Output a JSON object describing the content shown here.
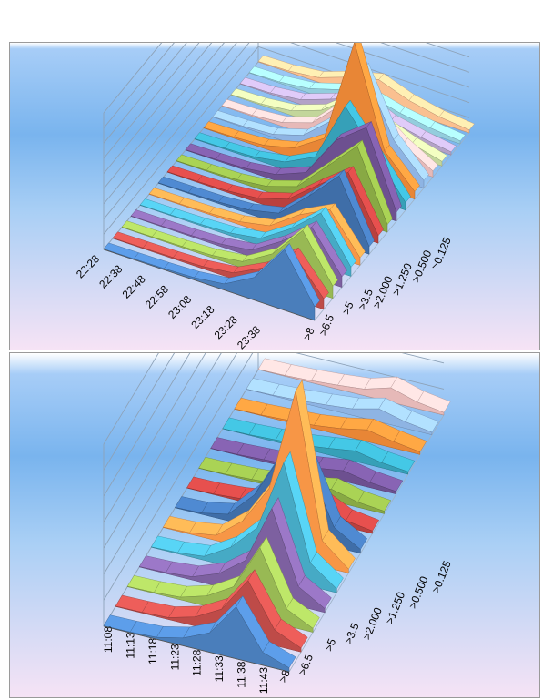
{
  "charts": [
    {
      "type": "area",
      "title": "",
      "x_categories": [
        ">8",
        ">6.5",
        ">5",
        ">3.5",
        ">2.000",
        ">1.250",
        ">0.500",
        ">0.125"
      ],
      "y_tick_labels": [
        "22:28",
        "22:38",
        "22:48",
        "22:58",
        "23:08",
        "23:18",
        "23:28",
        "23:38"
      ],
      "z_ticks": [
        0,
        1000,
        2000,
        3000,
        4000,
        5000,
        6000,
        7000,
        8000,
        9000
      ],
      "z_range": [
        0,
        9000
      ],
      "grid": true,
      "series_colors": [
        "#4a7ebb",
        "#be4b48",
        "#98b954",
        "#7d60a0",
        "#46aac5",
        "#f79646",
        "#3f6ea8",
        "#b9403e",
        "#88a944",
        "#6d5090",
        "#36a0b8",
        "#e88636",
        "#8eb4e3",
        "#e6b9b8",
        "#c3d69b",
        "#b3a2c7",
        "#93cddd",
        "#fac090"
      ],
      "chart_data": {
        "type": "area",
        "x": [
          ">8",
          ">6.5",
          ">5",
          ">3.5",
          ">2.000",
          ">1.250",
          ">0.500",
          ">0.125"
        ],
        "series": [
          {
            "values": [
              30,
              50,
              80,
              150,
              400,
              1500,
              4000,
              900
            ]
          },
          {
            "values": [
              30,
              50,
              80,
              150,
              400,
              1400,
              3000,
              700
            ]
          },
          {
            "values": [
              30,
              50,
              80,
              160,
              420,
              1600,
              3800,
              800
            ]
          },
          {
            "values": [
              30,
              50,
              80,
              170,
              450,
              1700,
              3300,
              700
            ]
          },
          {
            "values": [
              30,
              50,
              90,
              180,
              500,
              1800,
              3500,
              600
            ]
          },
          {
            "values": [
              30,
              50,
              90,
              200,
              600,
              2000,
              3000,
              500
            ]
          },
          {
            "values": [
              30,
              60,
              100,
              250,
              700,
              2500,
              4500,
              500
            ]
          },
          {
            "values": [
              30,
              60,
              110,
              300,
              900,
              2500,
              4000,
              500
            ]
          },
          {
            "values": [
              30,
              60,
              120,
              350,
              1000,
              3000,
              5000,
              500
            ]
          },
          {
            "values": [
              30,
              60,
              130,
              400,
              1200,
              4000,
              5500,
              600
            ]
          },
          {
            "values": [
              30,
              70,
              150,
              500,
              1500,
              5500,
              3000,
              500
            ]
          },
          {
            "values": [
              30,
              80,
              200,
              700,
              2000,
              9000,
              2500,
              500
            ]
          },
          {
            "values": [
              30,
              70,
              200,
              800,
              2500,
              6500,
              2500,
              500
            ]
          },
          {
            "values": [
              30,
              70,
              250,
              900,
              2800,
              3000,
              1500,
              400
            ]
          },
          {
            "values": [
              30,
              80,
              300,
              1000,
              2500,
              1500,
              800,
              300
            ]
          },
          {
            "values": [
              30,
              80,
              300,
              1000,
              1800,
              900,
              500,
              200
            ]
          },
          {
            "values": [
              30,
              80,
              300,
              900,
              1200,
              700,
              400,
              200
            ]
          },
          {
            "values": [
              30,
              80,
              300,
              1000,
              1500,
              800,
              400,
              200
            ]
          }
        ]
      }
    },
    {
      "type": "area",
      "title": "",
      "x_categories": [
        ">8",
        ">6.5",
        ">5",
        ">3.5",
        ">2.000",
        ">1.250",
        ">0.500",
        ">0.125"
      ],
      "y_tick_labels": [
        "11:08",
        "11:13",
        "11:18",
        "11:23",
        "11:28",
        "11:33",
        "11:38",
        "11:43"
      ],
      "z_ticks": [
        0,
        2000,
        4000,
        6000,
        8000,
        10000,
        12000,
        14000
      ],
      "z_range": [
        0,
        14000
      ],
      "grid": true,
      "series_colors": [
        "#4a7ebb",
        "#be4b48",
        "#98b954",
        "#7d60a0",
        "#46aac5",
        "#f79646",
        "#3f6ea8",
        "#b9403e",
        "#88a944",
        "#6d5090",
        "#36a0b8",
        "#e88636",
        "#8eb4e3",
        "#e6b9b8",
        "#c3d69b",
        "#b3a2c7",
        "#93cddd",
        "#fac090"
      ],
      "chart_data": {
        "type": "area",
        "x": [
          ">8",
          ">6.5",
          ">5",
          ">3.5",
          ">2.000",
          ">1.250",
          ">0.500",
          ">0.125"
        ],
        "series": [
          {
            "values": [
              30,
              60,
              150,
              600,
              1500,
              4000,
              1000,
              300
            ]
          },
          {
            "values": [
              30,
              60,
              150,
              700,
              1800,
              4500,
              1200,
              300
            ]
          },
          {
            "values": [
              30,
              70,
              200,
              800,
              2000,
              5500,
              1300,
              300
            ]
          },
          {
            "values": [
              30,
              80,
              250,
              1000,
              2500,
              7000,
              1500,
              300
            ]
          },
          {
            "values": [
              30,
              90,
              300,
              1500,
              3500,
              9000,
              1800,
              300
            ]
          },
          {
            "values": [
              30,
              100,
              400,
              2000,
              5000,
              13000,
              2000,
              300
            ]
          },
          {
            "values": [
              30,
              100,
              500,
              2500,
              6000,
              6000,
              1500,
              300
            ]
          },
          {
            "values": [
              20,
              50,
              200,
              500,
              800,
              1500,
              500,
              200
            ]
          },
          {
            "values": [
              20,
              50,
              150,
              300,
              500,
              900,
              400,
              200
            ]
          },
          {
            "values": [
              20,
              50,
              150,
              250,
              500,
              800,
              400,
              200
            ]
          },
          {
            "values": [
              20,
              50,
              150,
              250,
              500,
              800,
              400,
              200
            ]
          },
          {
            "values": [
              20,
              50,
              150,
              250,
              500,
              900,
              500,
              200
            ]
          },
          {
            "values": [
              20,
              50,
              150,
              300,
              500,
              1000,
              500,
              200
            ]
          },
          {
            "values": [
              20,
              50,
              150,
              300,
              500,
              1100,
              500,
              200
            ]
          }
        ]
      }
    }
  ]
}
